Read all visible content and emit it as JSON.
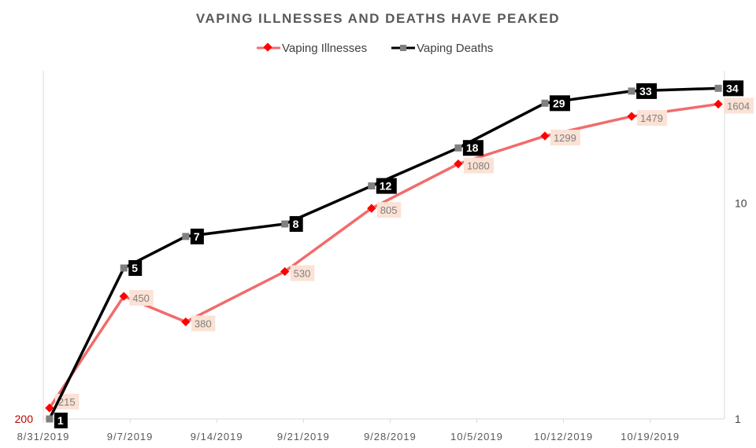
{
  "chart_data": {
    "type": "line",
    "title": "VAPING ILLNESSES AND DEATHS HAVE PEAKED",
    "legend": [
      "Vaping Illnesses",
      "Vaping Deaths"
    ],
    "legend_position": "top",
    "x_tick_labels": [
      "8/31/2019",
      "9/7/2019",
      "9/14/2019",
      "9/21/2019",
      "9/28/2019",
      "10/5/2019",
      "10/12/2019",
      "10/19/2019"
    ],
    "x_range_days": [
      0,
      55
    ],
    "x": [
      "8/31/2019",
      "9/6/2019",
      "9/11/2019",
      "9/19/2019",
      "9/26/2019",
      "10/3/2019",
      "10/10/2019",
      "10/17/2019",
      "10/24/2019"
    ],
    "x_day_offsets": [
      0,
      6,
      11,
      19,
      26,
      33,
      40,
      47,
      54
    ],
    "series": [
      {
        "name": "Vaping Illnesses",
        "axis": "left",
        "color": "#f26b6b",
        "marker_color": "#ff0000",
        "values": [
          215,
          450,
          380,
          530,
          805,
          1080,
          1299,
          1479,
          1604
        ],
        "labels": [
          "215",
          "450",
          "380",
          "530",
          "805",
          "1080",
          "1299",
          "1479",
          "1604"
        ]
      },
      {
        "name": "Vaping Deaths",
        "axis": "right",
        "color": "#000000",
        "marker_color": "#808080",
        "values": [
          1,
          5,
          7,
          8,
          12,
          18,
          29,
          33,
          34
        ],
        "labels": [
          "1",
          "5",
          "7",
          "8",
          "12",
          "18",
          "29",
          "33",
          "34"
        ]
      }
    ],
    "left_axis": {
      "scale": "log",
      "range": [
        200,
        2000
      ],
      "tick_labels": [
        "200"
      ],
      "color": "#c00000"
    },
    "right_axis": {
      "scale": "log",
      "range": [
        1,
        41
      ],
      "tick_labels": [
        "1",
        "10"
      ]
    },
    "grid": false
  }
}
